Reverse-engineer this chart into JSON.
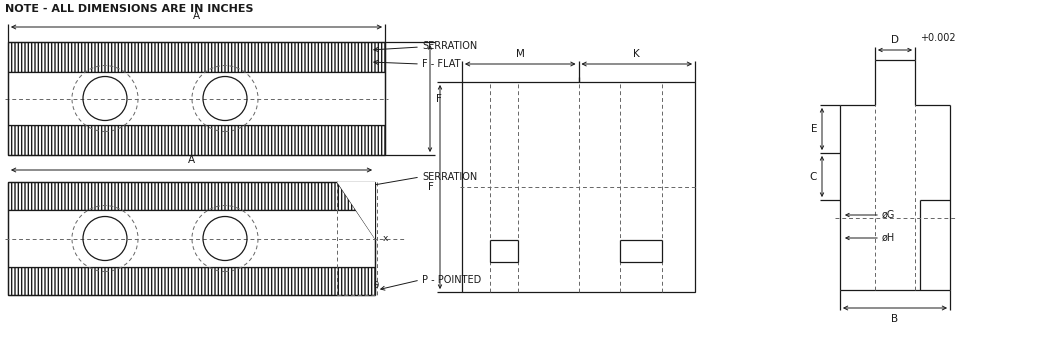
{
  "bg_color": "#ffffff",
  "line_color": "#1a1a1a",
  "dash_color": "#666666",
  "note_text": "NOTE - ALL DIMENSIONS ARE IN INCHES",
  "label_A": "A",
  "label_M": "M",
  "label_K": "K",
  "label_F": "F",
  "label_B": "B",
  "label_C": "C",
  "label_D": "D",
  "label_E": "E",
  "label_G": "øG",
  "label_H": "øH",
  "label_serration": "SERRATION",
  "label_fflat": "F - FLAT",
  "label_serration2": "SERRATION",
  "label_pointed": "P - POINTED",
  "label_tol": "+0.002",
  "font_note": 8.0,
  "font_label": 7.0,
  "font_dim": 7.5
}
